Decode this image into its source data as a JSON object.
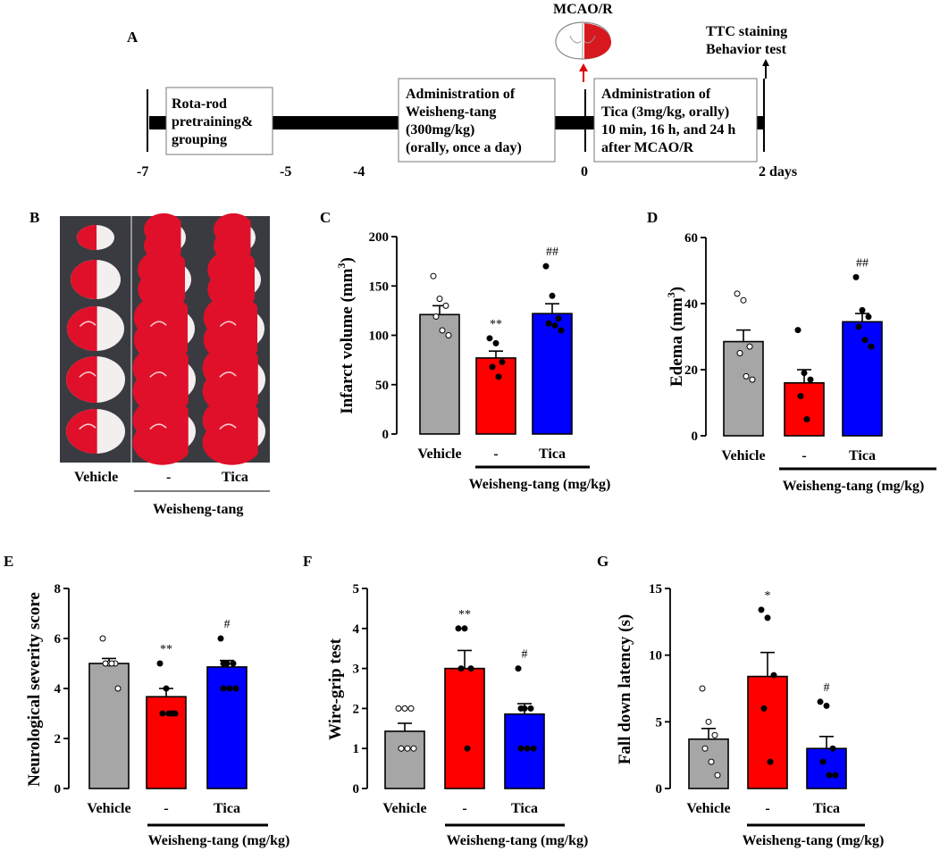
{
  "timeline": {
    "panel_label": "A",
    "ticks": [
      "-7",
      "-5",
      "-4",
      "0",
      "2 days"
    ],
    "box1": [
      "Rota-rod",
      "pretraining&",
      "grouping"
    ],
    "box2": [
      "Administration of",
      "Weisheng-tang",
      "(300mg/kg)",
      "(orally, once a day)"
    ],
    "box3": [
      "Administration of",
      "Tica (3mg/kg, orally)",
      "10 min, 16 h, and 24 h",
      "after MCAO/R"
    ],
    "mcao_label": "MCAO/R",
    "end_label": [
      "TTC staining",
      "Behavior test"
    ],
    "colors": {
      "bar": "#000000",
      "infarct": "#d7191f",
      "arrow": "#e3000f"
    }
  },
  "brain_panel": {
    "panel_label": "B",
    "columns": [
      "Vehicle",
      "-",
      "Tica"
    ],
    "group_label": "Weisheng-tang",
    "slice_color": "#e0102a"
  },
  "chart_data": [
    {
      "panel_label": "C",
      "type": "bar",
      "categories": [
        "Vehicle",
        "-",
        "Tica"
      ],
      "values": [
        121,
        77,
        122
      ],
      "errors": [
        9,
        7,
        10
      ],
      "colors": [
        "#a6a6a6",
        "#ff0000",
        "#0000ff"
      ],
      "ylabel": "Infarct volume (mm³)",
      "ylabel_main": "Infarct volume (mm",
      "ylabel_sup": "3",
      "ylabel_end": ")",
      "ylim": [
        0,
        200
      ],
      "yticks": [
        "0",
        "50",
        "100",
        "150",
        "200"
      ],
      "group_label": "Weisheng-tang (mg/kg)",
      "annotations": [
        "",
        "**",
        "##"
      ],
      "points": [
        [
          160,
          137,
          130,
          119,
          105,
          100
        ],
        [
          97,
          92,
          73,
          68,
          58
        ],
        [
          170,
          140,
          117,
          112,
          110,
          105
        ]
      ]
    },
    {
      "panel_label": "D",
      "type": "bar",
      "categories": [
        "Vehicle",
        "-",
        "Tica"
      ],
      "values": [
        28.5,
        16,
        34.5
      ],
      "errors": [
        3.5,
        4,
        2.5
      ],
      "colors": [
        "#a6a6a6",
        "#ff0000",
        "#0000ff"
      ],
      "ylabel": "Edema (mm³)",
      "ylabel_main": "Edema (mm",
      "ylabel_sup": "3",
      "ylabel_end": ")",
      "ylim": [
        0,
        60
      ],
      "yticks": [
        "0",
        "20",
        "40",
        "60"
      ],
      "group_label": "Weisheng-tang (mg/kg)",
      "annotations": [
        "",
        "",
        "##"
      ],
      "points": [
        [
          43,
          41,
          27,
          25,
          18,
          17
        ],
        [
          32,
          19,
          17,
          12,
          5
        ],
        [
          48,
          38,
          36,
          33,
          29,
          27
        ]
      ]
    },
    {
      "panel_label": "E",
      "type": "bar",
      "categories": [
        "Vehicle",
        "-",
        "Tica"
      ],
      "values": [
        5,
        3.67,
        4.86
      ],
      "errors": [
        0.2,
        0.33,
        0.26
      ],
      "colors": [
        "#a6a6a6",
        "#ff0000",
        "#0000ff"
      ],
      "ylabel": "Neurological severity score",
      "ylabel_main": "Neurological severity score",
      "ylabel_sup": "",
      "ylabel_end": "",
      "ylim": [
        0,
        8
      ],
      "yticks": [
        "0",
        "2",
        "4",
        "6",
        "8"
      ],
      "group_label": "Weisheng-tang (mg/kg)",
      "annotations": [
        "",
        "**",
        "#"
      ],
      "points": [
        [
          6,
          5,
          5,
          5,
          5,
          4
        ],
        [
          5,
          4,
          3,
          3,
          3,
          3
        ],
        [
          6,
          5,
          5,
          5,
          4,
          4,
          4
        ]
      ]
    },
    {
      "panel_label": "F",
      "type": "bar",
      "categories": [
        "Vehicle",
        "-",
        "Tica"
      ],
      "values": [
        1.43,
        3,
        1.86
      ],
      "errors": [
        0.2,
        0.45,
        0.26
      ],
      "colors": [
        "#a6a6a6",
        "#ff0000",
        "#0000ff"
      ],
      "ylabel": "Wire-grip test",
      "ylabel_main": "Wire-grip test",
      "ylabel_sup": "",
      "ylabel_end": "",
      "ylim": [
        0,
        5
      ],
      "yticks": [
        "0",
        "1",
        "2",
        "3",
        "4",
        "5"
      ],
      "group_label": "Weisheng-tang (mg/kg)",
      "annotations": [
        "",
        "**",
        "#"
      ],
      "points": [
        [
          2,
          2,
          2,
          1,
          1,
          1,
          1
        ],
        [
          4,
          4,
          3,
          3,
          1
        ],
        [
          3,
          2,
          2,
          2,
          1,
          1,
          1
        ]
      ]
    },
    {
      "panel_label": "G",
      "type": "bar",
      "categories": [
        "Vehicle",
        "-",
        "Tica"
      ],
      "values": [
        3.7,
        8.4,
        3
      ],
      "errors": [
        0.8,
        1.8,
        0.9
      ],
      "colors": [
        "#a6a6a6",
        "#ff0000",
        "#0000ff"
      ],
      "ylabel": "Fall down latency (s)",
      "ylabel_main": "Fall down latency (s)",
      "ylabel_sup": "",
      "ylabel_end": "",
      "ylim": [
        0,
        15
      ],
      "yticks": [
        "0",
        "5",
        "10",
        "15"
      ],
      "group_label": "Weisheng-tang (mg/kg)",
      "annotations": [
        "",
        "*",
        "#"
      ],
      "points": [
        [
          7.5,
          5,
          4,
          3,
          2,
          1
        ],
        [
          13.4,
          12.8,
          8.5,
          6,
          2
        ],
        [
          6.5,
          6.2,
          3,
          2,
          1,
          1
        ]
      ]
    }
  ]
}
